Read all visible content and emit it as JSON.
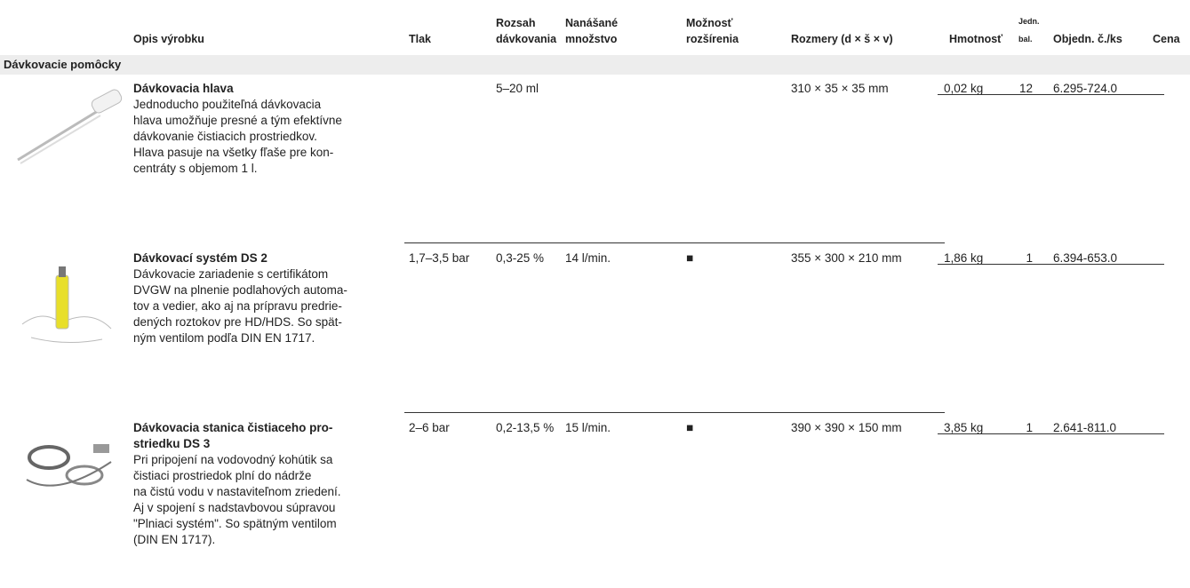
{
  "header": {
    "columns": [
      [
        "Opis výrobku"
      ],
      [
        "Tlak"
      ],
      [
        "Rozsah",
        "dávkovania"
      ],
      [
        "Nanášané",
        "množstvo"
      ],
      [
        "Možnosť",
        "rozšírenia"
      ],
      [
        "Rozmery (d × š × v)"
      ],
      [
        "Hmotnosť"
      ],
      [
        "Jedn.",
        "bal."
      ],
      [
        "Objedn. č./ks"
      ],
      [
        "Cena"
      ]
    ]
  },
  "section": "Dávkovacie pomôcky",
  "rows": [
    {
      "name": [
        "Dávkovacia hlava"
      ],
      "description": [
        "Jednoducho použiteľná dávkovacia",
        "hlava umožňuje presné a tým efektívne",
        "dávkovanie čistiacich prostriedkov.",
        "Hlava pasuje na všetky fľaše pre kon-",
        "centráty s objemom 1 l."
      ],
      "rozsah": "5–20 ml",
      "rozmery": "310 × 35 × 35 mm",
      "hmotnost": "0,02 kg",
      "jedn_bal": 12,
      "objedn": "6.295-724.0"
    },
    {
      "name": [
        "Dávkovací systém DS 2"
      ],
      "description": [
        "Dávkovacie zariadenie s certifikátom",
        "DVGW na plnenie podlahových automa-",
        "tov a vedier, ako aj na prípravu predrie-",
        "dených roztokov pre HD/HDS. So spät-",
        "ným ventilom podľa DIN EN 1717."
      ],
      "tlak": "1,7–3,5 bar",
      "rozsah": "0,3-25 %",
      "mnozstvo": "14 l/min.",
      "rozsirenie": "■",
      "rozmery": "355 × 300 × 210 mm",
      "hmotnost": "1,86 kg",
      "jedn_bal": 1,
      "objedn": "6.394-653.0"
    },
    {
      "name": [
        "Dávkovacia stanica čistiaceho pro-",
        "striedku DS 3"
      ],
      "description": [
        "Pri pripojení na vodovodný kohútik sa",
        "čistiaci prostriedok plní do nádrže",
        "na čistú vodu v nastaviteľnom zriedení.",
        "Aj v spojení s nadstavbovou súpravou",
        "\"Plniaci systém\". So spätným ventilom",
        "(DIN EN 1717)."
      ],
      "tlak": "2–6 bar",
      "rozsah": "0,2-13,5 %",
      "mnozstvo": "15 l/min.",
      "rozsirenie": "■",
      "rozmery": "390 × 390 × 150 mm",
      "hmotnost": "3,85 kg",
      "jedn_bal": 1,
      "objedn": "2.641-811.0"
    }
  ]
}
